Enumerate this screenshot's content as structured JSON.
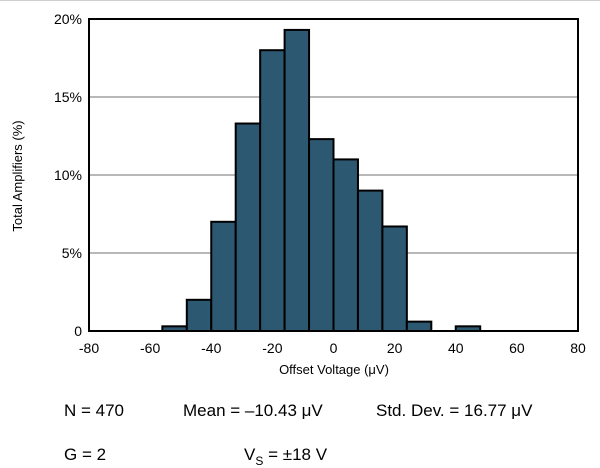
{
  "chart_data": {
    "type": "bar",
    "xlabel": "Offset Voltage (μV)",
    "ylabel": "Total Amplifiers (%)",
    "xlim": [
      -80,
      80
    ],
    "ylim": [
      0,
      20
    ],
    "grid": true,
    "x_ticks": [
      "-80",
      "-60",
      "-40",
      "-20",
      "0",
      "20",
      "40",
      "60",
      "80"
    ],
    "y_ticks": [
      "0",
      "5%",
      "10%",
      "15%",
      "20%"
    ],
    "bin_width": 8,
    "bins": [
      {
        "x0": -56,
        "x1": -48,
        "value": 0.3
      },
      {
        "x0": -48,
        "x1": -40,
        "value": 2.0
      },
      {
        "x0": -40,
        "x1": -32,
        "value": 7.0
      },
      {
        "x0": -32,
        "x1": -24,
        "value": 13.3
      },
      {
        "x0": -24,
        "x1": -16,
        "value": 18.0
      },
      {
        "x0": -16,
        "x1": -8,
        "value": 19.3
      },
      {
        "x0": -8,
        "x1": 0,
        "value": 12.3
      },
      {
        "x0": 0,
        "x1": 8,
        "value": 11.0
      },
      {
        "x0": 8,
        "x1": 16,
        "value": 9.0
      },
      {
        "x0": 16,
        "x1": 24,
        "value": 6.7
      },
      {
        "x0": 24,
        "x1": 32,
        "value": 0.6
      },
      {
        "x0": 40,
        "x1": 48,
        "value": 0.3
      }
    ],
    "colors": {
      "bar": "#2c5872",
      "bar_edge": "#000000",
      "grid": "#a0a0a0"
    }
  },
  "stats": {
    "n": "N = 470",
    "mean": "Mean = –10.43 μV",
    "std": "Std. Dev. = 16.77 μV",
    "gain": "G = 2",
    "vs_prefix": "V",
    "vs_sub": "S",
    "vs_value": " = ±18 V"
  }
}
